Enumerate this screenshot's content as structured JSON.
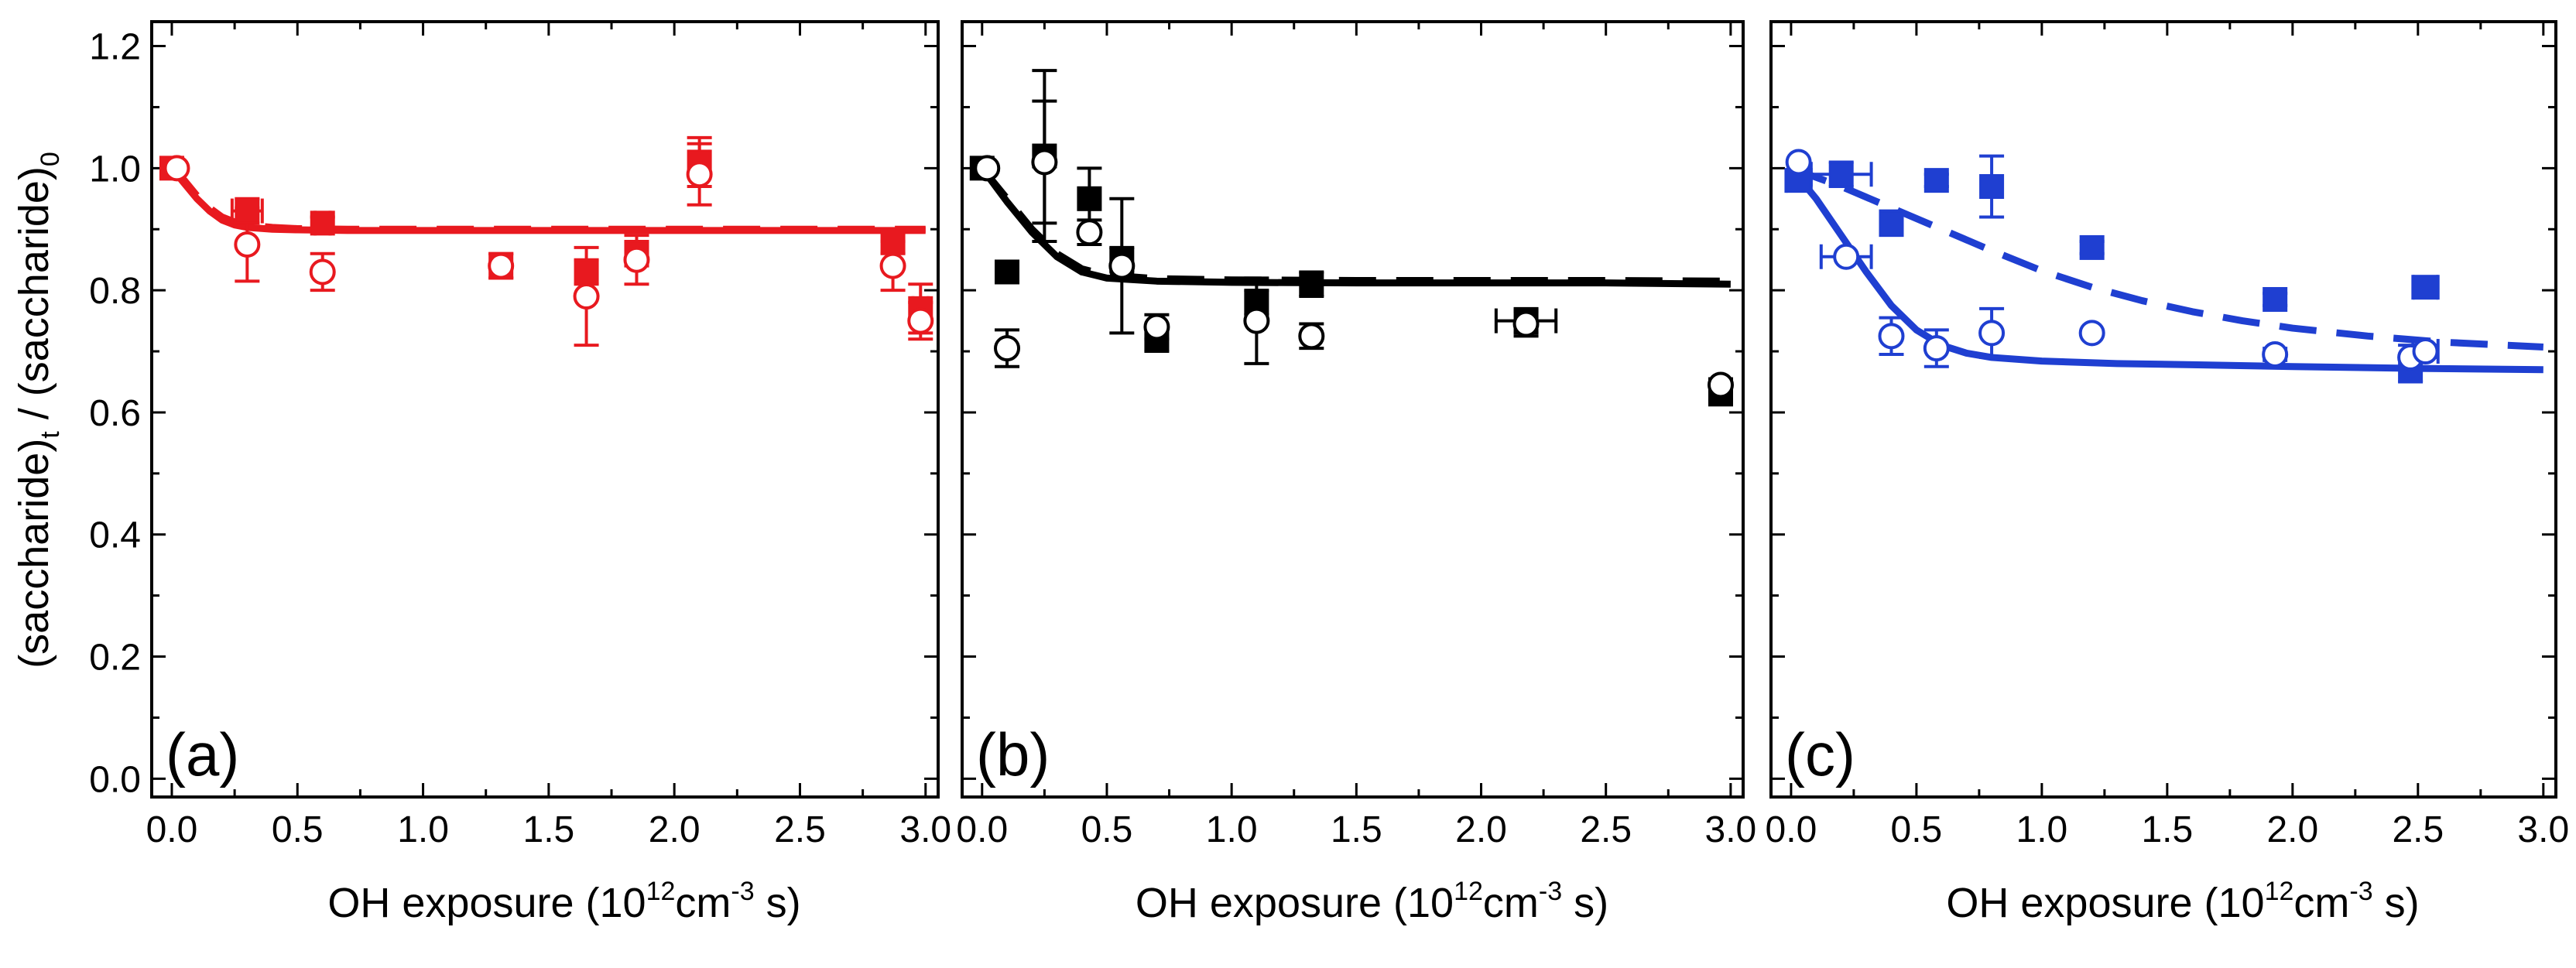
{
  "figure": {
    "ylabel_parts": [
      "(saccharide)",
      "t",
      " / (saccharide)",
      "0"
    ],
    "xlabel_parts": [
      "OH exposure (10",
      "12",
      "cm",
      "-3",
      " s)"
    ],
    "x_ticks": [
      "0.0",
      "0.5",
      "1.0",
      "1.5",
      "2.0",
      "2.5",
      "3.0"
    ],
    "y_ticks": [
      "0.0",
      "0.2",
      "0.4",
      "0.6",
      "0.8",
      "1.0",
      "1.2"
    ]
  },
  "chart_data": [
    {
      "type": "scatter",
      "panel_label": "(a)",
      "color": "#e8191f",
      "xlim": [
        -0.08,
        3.05
      ],
      "ylim": [
        -0.03,
        1.24
      ],
      "series": [
        {
          "name": "filled squares",
          "marker": "square-filled",
          "points": [
            {
              "x": 0.0,
              "y": 1.0,
              "yerr": 0,
              "xerr": 0
            },
            {
              "x": 0.3,
              "y": 0.93,
              "yerr": 0.02,
              "xerr": 0.06
            },
            {
              "x": 0.6,
              "y": 0.91,
              "yerr": 0.01,
              "xerr": 0.03
            },
            {
              "x": 1.31,
              "y": 0.84,
              "yerr": 0.02,
              "xerr": 0.03
            },
            {
              "x": 1.65,
              "y": 0.83,
              "yerr": 0.02,
              "xerr": 0
            },
            {
              "x": 1.85,
              "y": 0.86,
              "yerr": 0.02,
              "xerr": 0.04
            },
            {
              "x": 2.1,
              "y": 1.01,
              "yerr": 0.04,
              "xerr": 0.04
            },
            {
              "x": 2.87,
              "y": 0.88,
              "yerr": 0.02,
              "xerr": 0.03
            },
            {
              "x": 2.98,
              "y": 0.77,
              "yerr": 0.04,
              "xerr": 0.03
            }
          ]
        },
        {
          "name": "open circles",
          "marker": "circle-open",
          "points": [
            {
              "x": 0.02,
              "y": 1.0,
              "yerr": 0,
              "xerr": 0
            },
            {
              "x": 0.3,
              "y": 0.875,
              "yerr": 0.06,
              "xerr": 0
            },
            {
              "x": 0.6,
              "y": 0.83,
              "yerr": 0.03,
              "xerr": 0
            },
            {
              "x": 1.31,
              "y": 0.84,
              "yerr": 0.02,
              "xerr": 0
            },
            {
              "x": 1.65,
              "y": 0.79,
              "yerr": 0.08,
              "xerr": 0
            },
            {
              "x": 1.85,
              "y": 0.85,
              "yerr": 0.04,
              "xerr": 0
            },
            {
              "x": 2.1,
              "y": 0.99,
              "yerr": 0.05,
              "xerr": 0
            },
            {
              "x": 2.87,
              "y": 0.84,
              "yerr": 0.04,
              "xerr": 0
            },
            {
              "x": 2.98,
              "y": 0.75,
              "yerr": 0.03,
              "xerr": 0
            }
          ]
        }
      ],
      "fit_lines": [
        {
          "name": "fit filled",
          "style": "dashed",
          "x": [
            0,
            0.05,
            0.1,
            0.15,
            0.2,
            0.25,
            0.3,
            0.4,
            0.5,
            0.7,
            1.0,
            1.5,
            2.0,
            2.5,
            3.0
          ],
          "y": [
            1.0,
            0.98,
            0.955,
            0.935,
            0.92,
            0.912,
            0.907,
            0.903,
            0.901,
            0.9,
            0.9,
            0.9,
            0.9,
            0.9,
            0.9
          ]
        },
        {
          "name": "fit open",
          "style": "solid",
          "x": [
            0,
            0.05,
            0.1,
            0.15,
            0.2,
            0.25,
            0.3,
            0.4,
            0.5,
            0.7,
            1.0,
            1.5,
            2.0,
            2.5,
            3.0
          ],
          "y": [
            1.0,
            0.975,
            0.95,
            0.93,
            0.915,
            0.907,
            0.903,
            0.9,
            0.899,
            0.898,
            0.898,
            0.898,
            0.898,
            0.898,
            0.898
          ]
        }
      ]
    },
    {
      "type": "scatter",
      "panel_label": "(b)",
      "color": "#000000",
      "xlim": [
        -0.08,
        3.05
      ],
      "ylim": [
        -0.03,
        1.24
      ],
      "series": [
        {
          "name": "filled squares",
          "marker": "square-filled",
          "points": [
            {
              "x": 0.0,
              "y": 1.0,
              "yerr": 0,
              "xerr": 0
            },
            {
              "x": 0.1,
              "y": 0.83,
              "yerr": 0,
              "xerr": 0
            },
            {
              "x": 0.25,
              "y": 1.02,
              "yerr": 0.14,
              "xerr": 0
            },
            {
              "x": 0.43,
              "y": 0.95,
              "yerr": 0.05,
              "xerr": 0
            },
            {
              "x": 0.56,
              "y": 0.85,
              "yerr": 0.02,
              "xerr": 0
            },
            {
              "x": 0.7,
              "y": 0.72,
              "yerr": 0.02,
              "xerr": 0
            },
            {
              "x": 1.1,
              "y": 0.78,
              "yerr": 0.02,
              "xerr": 0
            },
            {
              "x": 1.32,
              "y": 0.81,
              "yerr": 0.02,
              "xerr": 0
            },
            {
              "x": 2.18,
              "y": 0.75,
              "yerr": 0.02,
              "xerr": 0.12
            },
            {
              "x": 2.96,
              "y": 0.63,
              "yerr": 0.01,
              "xerr": 0
            }
          ]
        },
        {
          "name": "open circles",
          "marker": "circle-open",
          "points": [
            {
              "x": 0.02,
              "y": 1.0,
              "yerr": 0,
              "xerr": 0
            },
            {
              "x": 0.1,
              "y": 0.705,
              "yerr": 0.03,
              "xerr": 0
            },
            {
              "x": 0.25,
              "y": 1.01,
              "yerr": 0.1,
              "xerr": 0
            },
            {
              "x": 0.43,
              "y": 0.895,
              "yerr": 0.02,
              "xerr": 0
            },
            {
              "x": 0.56,
              "y": 0.84,
              "yerr": 0.11,
              "xerr": 0
            },
            {
              "x": 0.7,
              "y": 0.74,
              "yerr": 0.02,
              "xerr": 0
            },
            {
              "x": 1.1,
              "y": 0.75,
              "yerr": 0.07,
              "xerr": 0
            },
            {
              "x": 1.32,
              "y": 0.725,
              "yerr": 0.02,
              "xerr": 0
            },
            {
              "x": 2.18,
              "y": 0.745,
              "yerr": 0.02,
              "xerr": 0
            },
            {
              "x": 2.96,
              "y": 0.645,
              "yerr": 0.01,
              "xerr": 0
            }
          ]
        }
      ],
      "fit_lines": [
        {
          "name": "fit filled",
          "style": "dashed",
          "x": [
            0,
            0.1,
            0.2,
            0.3,
            0.4,
            0.5,
            0.7,
            1.0,
            1.5,
            2.0,
            2.5,
            3.0
          ],
          "y": [
            1.0,
            0.95,
            0.9,
            0.86,
            0.835,
            0.825,
            0.819,
            0.817,
            0.816,
            0.816,
            0.816,
            0.815
          ]
        },
        {
          "name": "fit open",
          "style": "solid",
          "x": [
            0,
            0.1,
            0.2,
            0.3,
            0.4,
            0.5,
            0.7,
            1.0,
            1.5,
            2.0,
            2.5,
            3.0
          ],
          "y": [
            1.0,
            0.945,
            0.895,
            0.855,
            0.83,
            0.82,
            0.815,
            0.813,
            0.812,
            0.812,
            0.812,
            0.81
          ]
        }
      ]
    },
    {
      "type": "scatter",
      "panel_label": "(c)",
      "color": "#1f3fd1",
      "xlim": [
        -0.08,
        3.05
      ],
      "ylim": [
        -0.03,
        1.24
      ],
      "series": [
        {
          "name": "filled squares",
          "marker": "square-filled",
          "points": [
            {
              "x": 0.03,
              "y": 0.98,
              "yerr": 0,
              "xerr": 0.05
            },
            {
              "x": 0.2,
              "y": 0.99,
              "yerr": 0.02,
              "xerr": 0.12
            },
            {
              "x": 0.4,
              "y": 0.91,
              "yerr": 0.02,
              "xerr": 0
            },
            {
              "x": 0.58,
              "y": 0.98,
              "yerr": 0.01,
              "xerr": 0
            },
            {
              "x": 0.8,
              "y": 0.97,
              "yerr": 0.05,
              "xerr": 0
            },
            {
              "x": 1.2,
              "y": 0.87,
              "yerr": 0.01,
              "xerr": 0
            },
            {
              "x": 1.93,
              "y": 0.785,
              "yerr": 0.01,
              "xerr": 0
            },
            {
              "x": 2.47,
              "y": 0.67,
              "yerr": 0.02,
              "xerr": 0
            },
            {
              "x": 2.53,
              "y": 0.805,
              "yerr": 0.01,
              "xerr": 0.05
            }
          ]
        },
        {
          "name": "open circles",
          "marker": "circle-open",
          "points": [
            {
              "x": 0.03,
              "y": 1.01,
              "yerr": 0,
              "xerr": 0
            },
            {
              "x": 0.22,
              "y": 0.855,
              "yerr": 0,
              "xerr": 0.1
            },
            {
              "x": 0.4,
              "y": 0.725,
              "yerr": 0.03,
              "xerr": 0
            },
            {
              "x": 0.58,
              "y": 0.705,
              "yerr": 0.03,
              "xerr": 0
            },
            {
              "x": 0.8,
              "y": 0.73,
              "yerr": 0.04,
              "xerr": 0
            },
            {
              "x": 1.2,
              "y": 0.73,
              "yerr": 0,
              "xerr": 0
            },
            {
              "x": 1.93,
              "y": 0.695,
              "yerr": 0.01,
              "xerr": 0
            },
            {
              "x": 2.47,
              "y": 0.69,
              "yerr": 0.02,
              "xerr": 0
            },
            {
              "x": 2.53,
              "y": 0.7,
              "yerr": 0.01,
              "xerr": 0.05
            }
          ]
        }
      ],
      "fit_lines": [
        {
          "name": "fit filled",
          "style": "dashed",
          "x": [
            0,
            0.2,
            0.4,
            0.6,
            0.8,
            1.0,
            1.2,
            1.4,
            1.6,
            1.8,
            2.0,
            2.3,
            2.6,
            3.0
          ],
          "y": [
            1.0,
            0.97,
            0.935,
            0.9,
            0.865,
            0.832,
            0.805,
            0.783,
            0.765,
            0.75,
            0.738,
            0.725,
            0.715,
            0.707
          ]
        },
        {
          "name": "fit open",
          "style": "solid",
          "x": [
            0,
            0.1,
            0.2,
            0.3,
            0.4,
            0.5,
            0.6,
            0.7,
            0.8,
            1.0,
            1.3,
            1.6,
            2.0,
            2.5,
            3.0
          ],
          "y": [
            1.0,
            0.95,
            0.89,
            0.83,
            0.775,
            0.735,
            0.71,
            0.697,
            0.69,
            0.684,
            0.68,
            0.678,
            0.675,
            0.672,
            0.67
          ]
        }
      ]
    }
  ]
}
